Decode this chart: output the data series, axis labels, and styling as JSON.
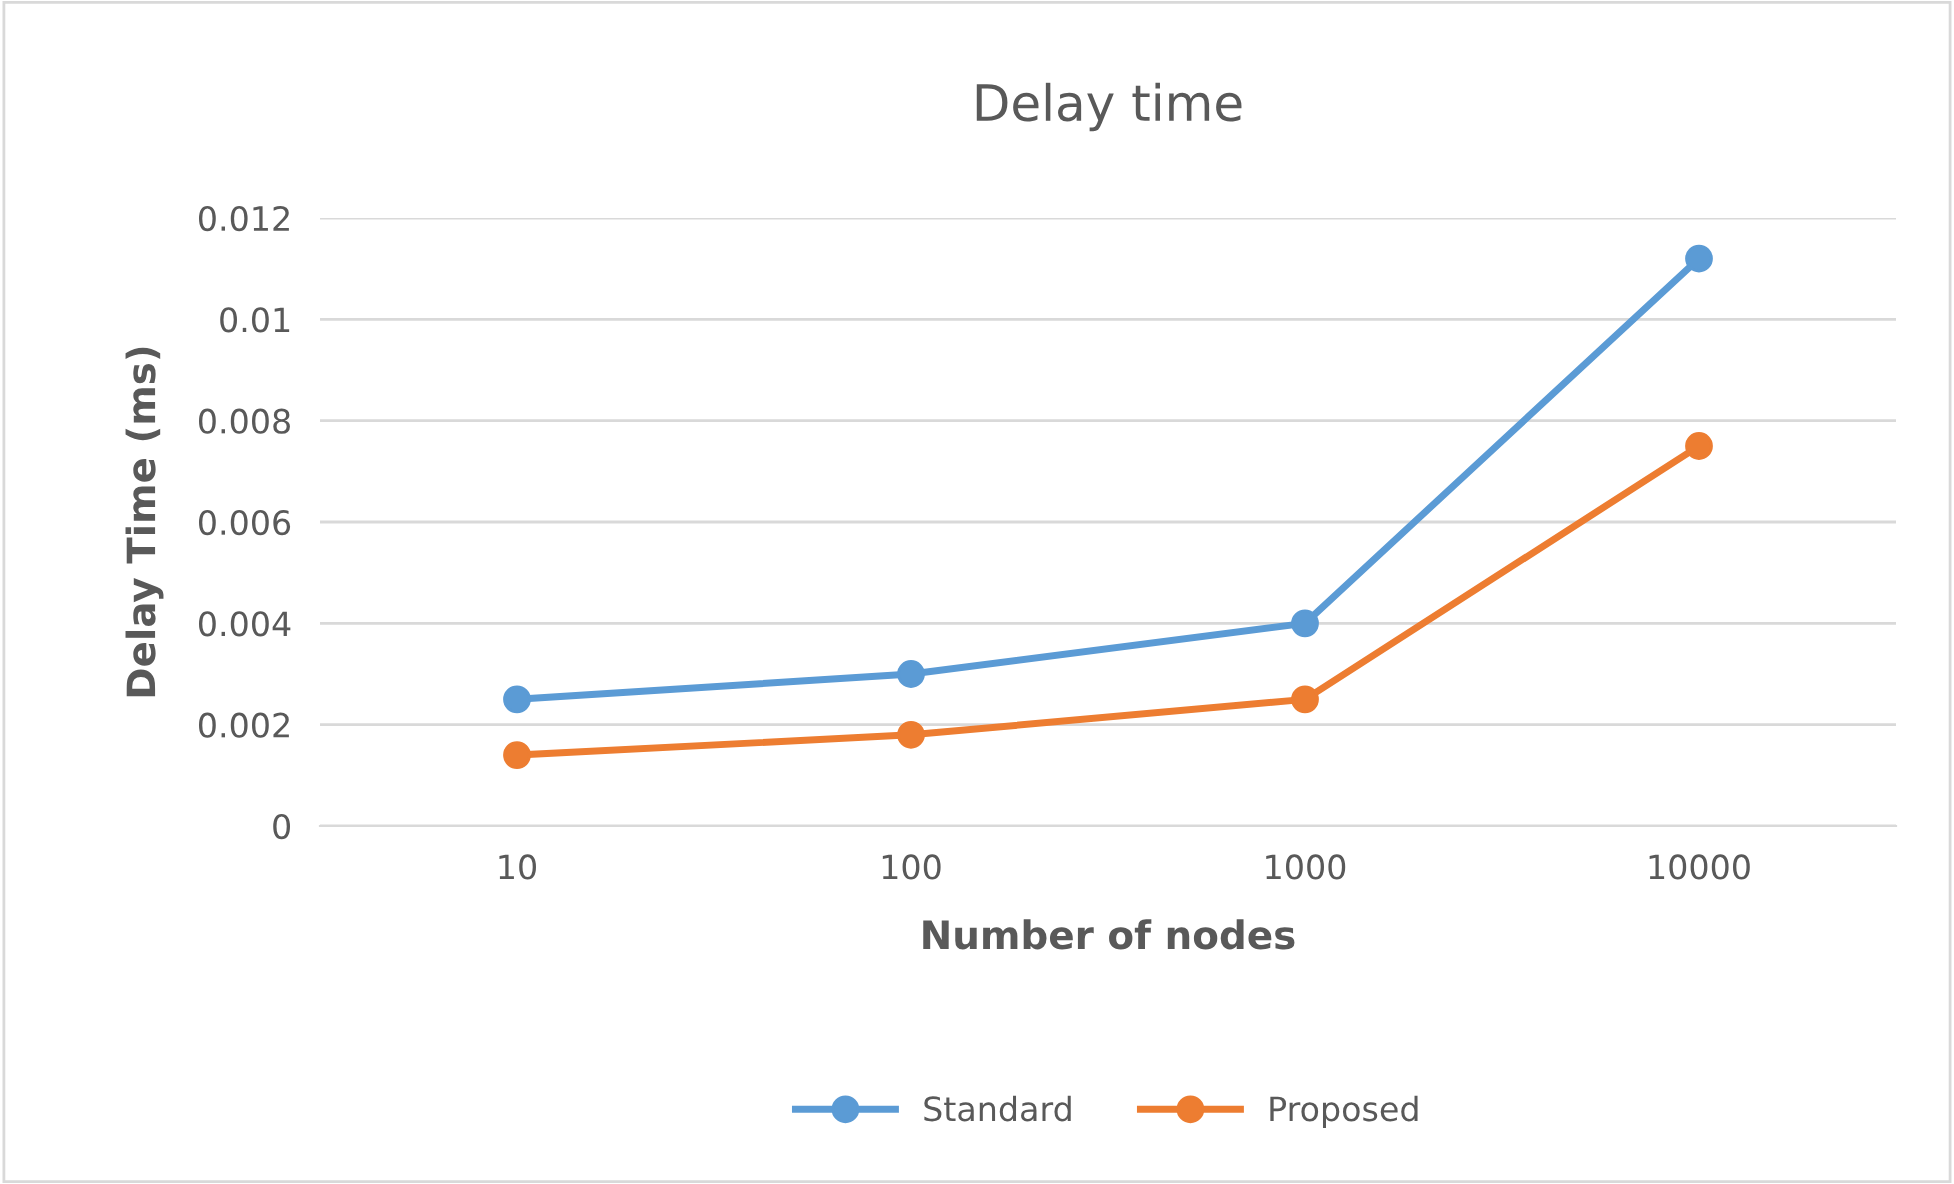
{
  "chart_data": {
    "type": "line",
    "title": "Delay time",
    "xlabel": "Number of nodes",
    "ylabel": "Delay Time (ms)",
    "categories": [
      "10",
      "100",
      "1000",
      "10000"
    ],
    "series": [
      {
        "name": "Standard",
        "color": "#5b9bd5",
        "values": [
          0.0025,
          0.003,
          0.004,
          0.0112
        ]
      },
      {
        "name": "Proposed",
        "color": "#ed7d31",
        "values": [
          0.0014,
          0.0018,
          0.0025,
          0.0075
        ]
      }
    ],
    "ylim": [
      0,
      0.012
    ],
    "yticks": [
      0,
      0.002,
      0.004,
      0.006,
      0.008,
      0.01,
      0.012
    ],
    "grid": "y",
    "legend": "bottom",
    "marker": "circle",
    "line_style": "solid"
  }
}
